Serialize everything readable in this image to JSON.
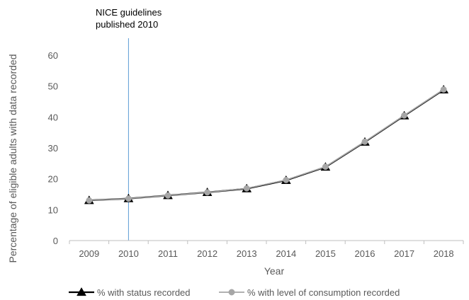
{
  "chart_data": {
    "type": "line",
    "xlabel": "Year",
    "ylabel": "Percentage of eligible adults with data recorded",
    "ylim": [
      0,
      60
    ],
    "yticks": [
      0,
      10,
      20,
      30,
      40,
      50,
      60
    ],
    "categories": [
      "2009",
      "2010",
      "2011",
      "2012",
      "2013",
      "2014",
      "2015",
      "2016",
      "2017",
      "2018"
    ],
    "grid": false,
    "legend_position": "bottom",
    "series": [
      {
        "name": "% with status recorded",
        "color": "#000000",
        "marker": "triangle",
        "values": [
          13.0,
          13.6,
          14.6,
          15.6,
          16.8,
          19.5,
          23.8,
          31.9,
          40.4,
          48.8
        ]
      },
      {
        "name": "% with level of consumption recorded",
        "color": "#a6a6a6",
        "marker": "circle",
        "values": [
          13.0,
          13.6,
          14.6,
          15.6,
          16.9,
          19.6,
          23.9,
          32.0,
          40.5,
          48.9
        ]
      }
    ],
    "annotations": [
      {
        "label_lines": [
          "NICE guidelines",
          "published 2010"
        ],
        "x_category": "2010",
        "color": "#5b9bd5"
      }
    ]
  }
}
